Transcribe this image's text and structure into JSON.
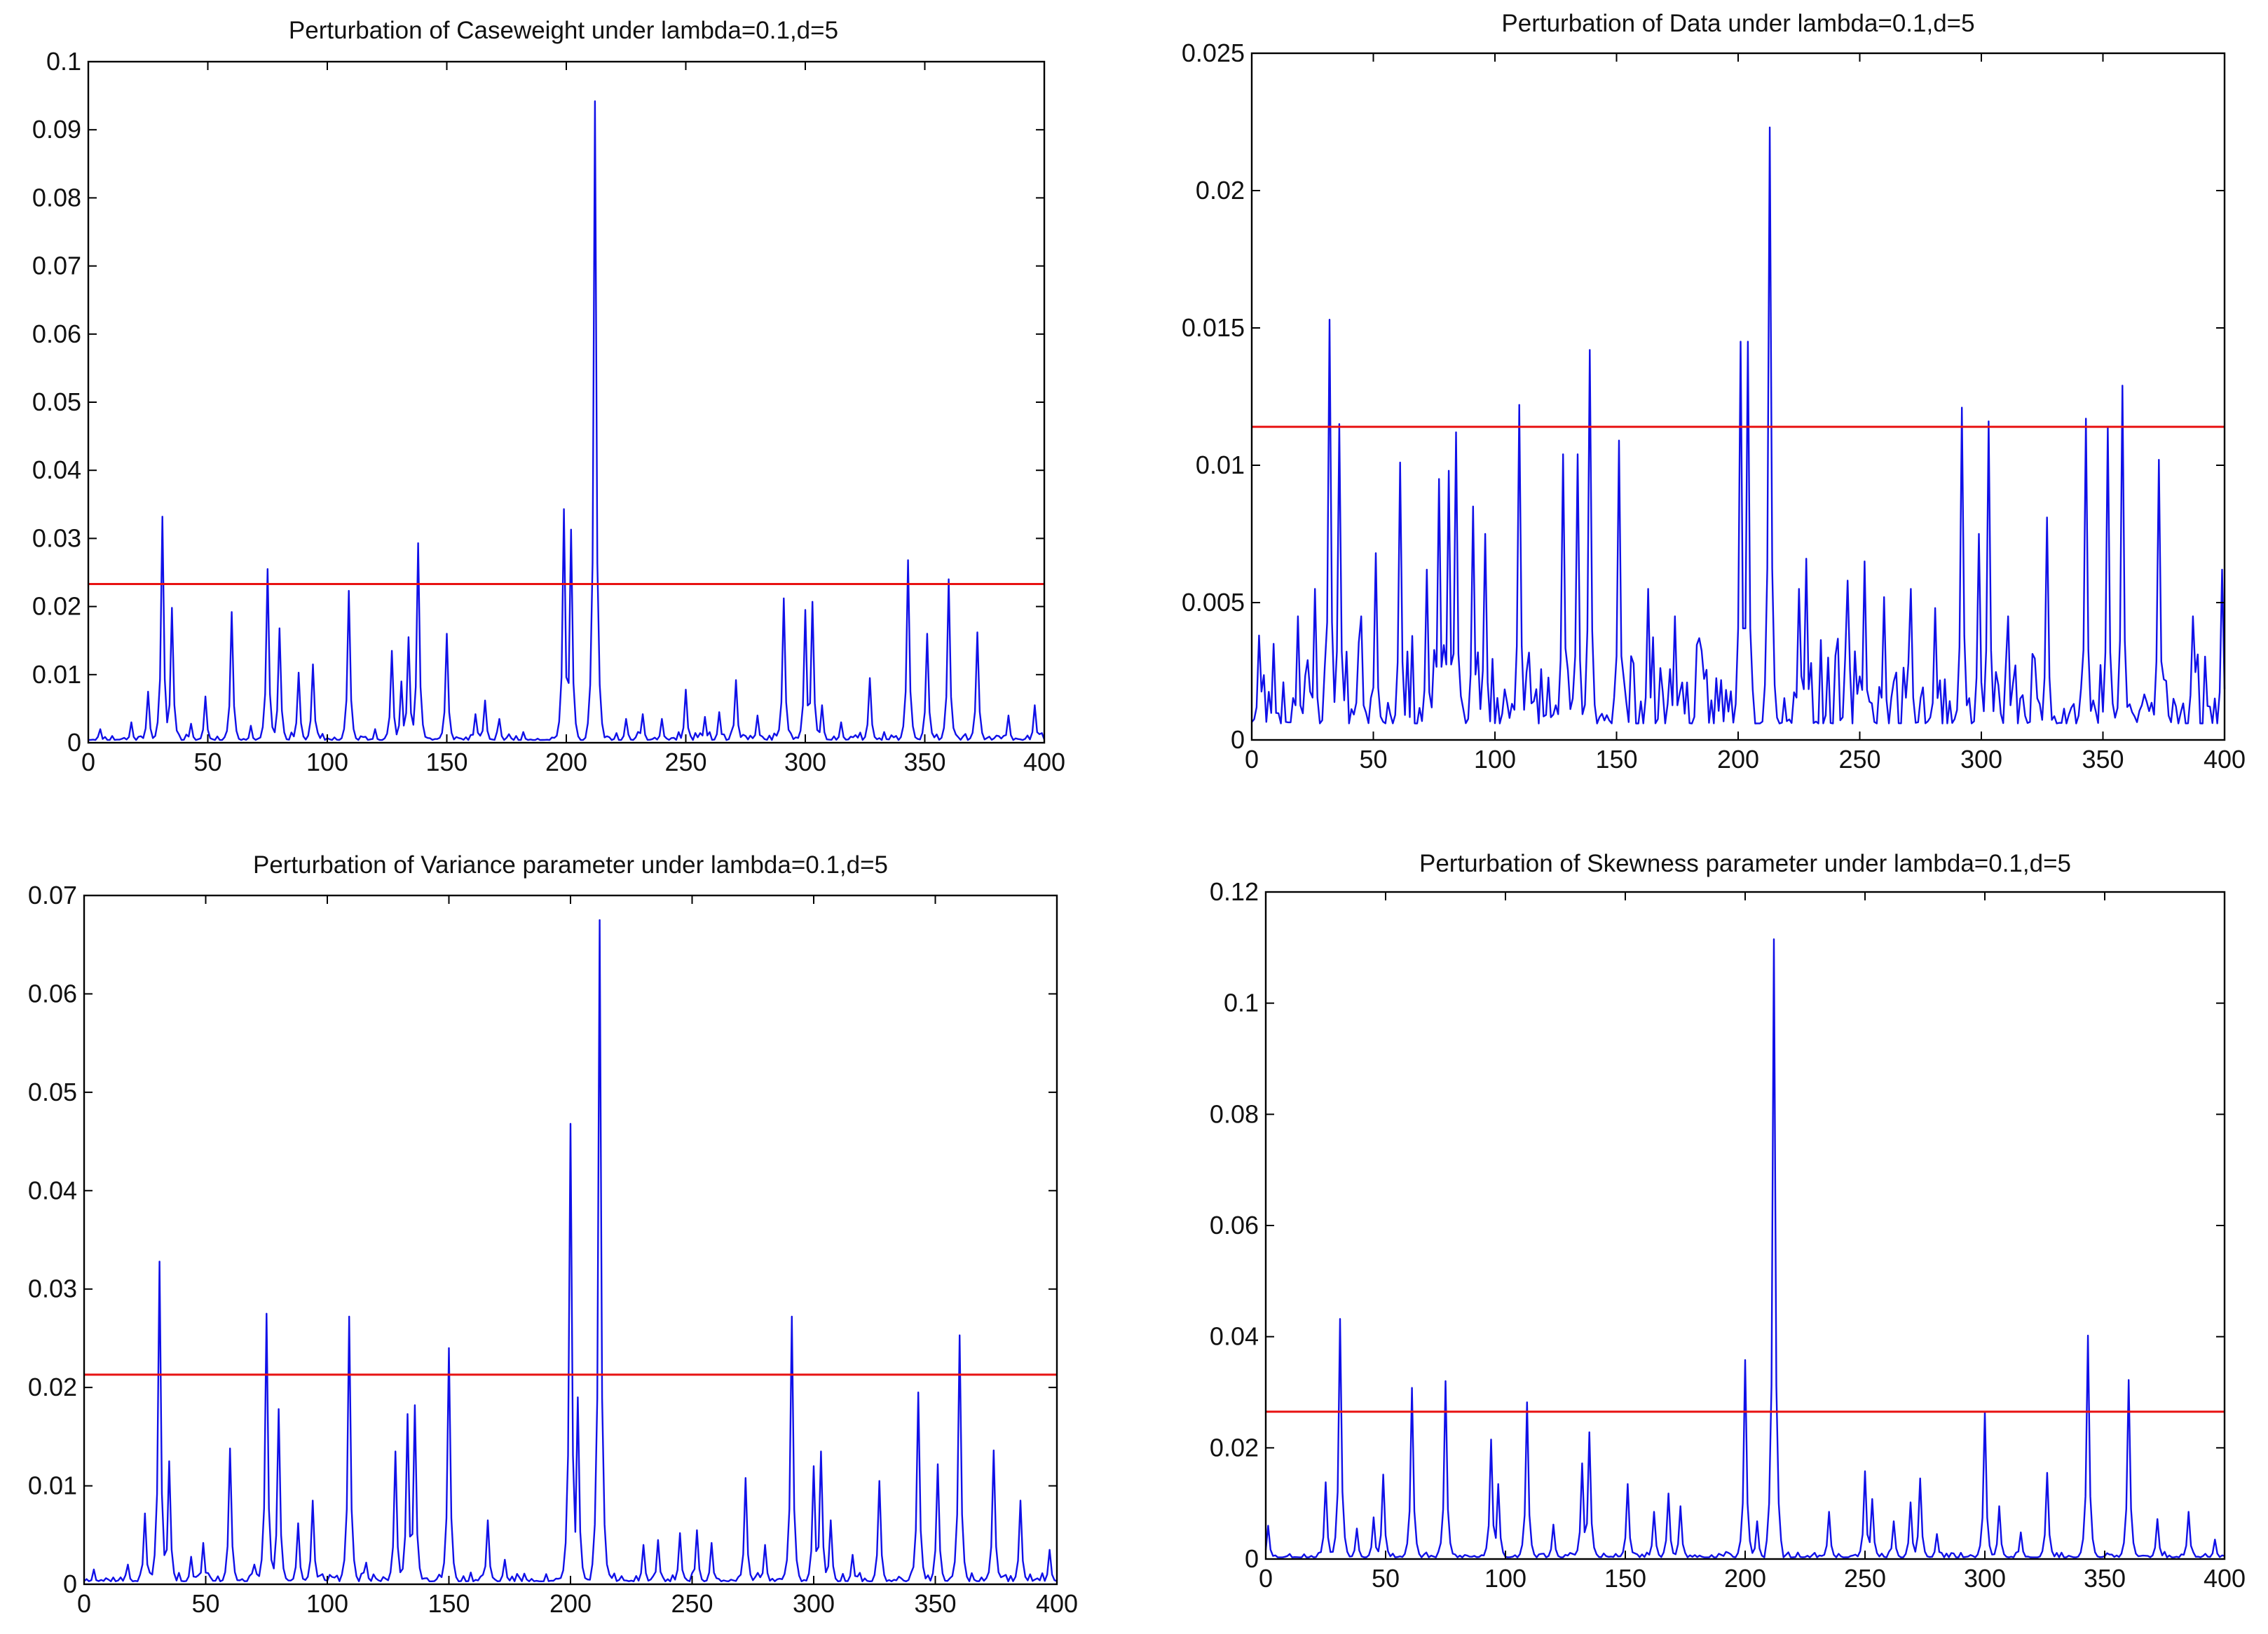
{
  "figure": {
    "layout": "2x2 grid of line plots"
  },
  "colors": {
    "series": "#1010e8",
    "threshold": "#e81212",
    "axes": "#000000",
    "background": "#ffffff"
  },
  "chart_data": [
    {
      "type": "line",
      "title": "Perturbation of Caseweight under lambda=0.1,d=5",
      "xlabel": "",
      "ylabel": "",
      "xlim": [
        0,
        400
      ],
      "ylim": [
        0,
        0.1
      ],
      "x_ticks": [
        0,
        50,
        100,
        150,
        200,
        250,
        300,
        350,
        400
      ],
      "x_tick_labels": [
        "0",
        "50",
        "100",
        "150",
        "200",
        "250",
        "300",
        "350",
        "400"
      ],
      "y_ticks": [
        0,
        0.01,
        0.02,
        0.03,
        0.04,
        0.05,
        0.06,
        0.07,
        0.08,
        0.09,
        0.1
      ],
      "y_tick_labels": [
        "0",
        "0.01",
        "0.02",
        "0.03",
        "0.04",
        "0.05",
        "0.06",
        "0.07",
        "0.08",
        "0.09",
        "0.1"
      ],
      "baseline": 0.0008,
      "noise": 0.0012,
      "noise_seed": 11,
      "grid": false,
      "threshold": 0.0233,
      "peaks": [
        [
          5,
          0.002
        ],
        [
          18,
          0.003
        ],
        [
          25,
          0.0075
        ],
        [
          31,
          0.0332
        ],
        [
          35,
          0.0198
        ],
        [
          43,
          0.0028
        ],
        [
          49,
          0.0068
        ],
        [
          60,
          0.0192
        ],
        [
          68,
          0.0025
        ],
        [
          75,
          0.0255
        ],
        [
          80,
          0.0168
        ],
        [
          88,
          0.0103
        ],
        [
          94,
          0.0115
        ],
        [
          109,
          0.0223
        ],
        [
          120,
          0.002
        ],
        [
          127,
          0.0135
        ],
        [
          131,
          0.009
        ],
        [
          134,
          0.0155
        ],
        [
          138,
          0.0293
        ],
        [
          150,
          0.016
        ],
        [
          162,
          0.0042
        ],
        [
          166,
          0.0062
        ],
        [
          172,
          0.0035
        ],
        [
          199,
          0.0343
        ],
        [
          202,
          0.0313
        ],
        [
          212,
          0.0942
        ],
        [
          225,
          0.0035
        ],
        [
          232,
          0.0042
        ],
        [
          240,
          0.0035
        ],
        [
          250,
          0.0078
        ],
        [
          258,
          0.0038
        ],
        [
          264,
          0.0045
        ],
        [
          271,
          0.0092
        ],
        [
          280,
          0.004
        ],
        [
          291,
          0.0212
        ],
        [
          300,
          0.0195
        ],
        [
          303,
          0.0207
        ],
        [
          307,
          0.0055
        ],
        [
          315,
          0.003
        ],
        [
          327,
          0.0095
        ],
        [
          343,
          0.0268
        ],
        [
          351,
          0.016
        ],
        [
          360,
          0.024
        ],
        [
          372,
          0.0162
        ],
        [
          385,
          0.004
        ],
        [
          396,
          0.0055
        ]
      ]
    },
    {
      "type": "line",
      "title": "Perturbation of Data under lambda=0.1,d=5",
      "xlabel": "",
      "ylabel": "",
      "xlim": [
        0,
        400
      ],
      "ylim": [
        0,
        0.025
      ],
      "x_ticks": [
        0,
        50,
        100,
        150,
        200,
        250,
        300,
        350,
        400
      ],
      "x_tick_labels": [
        "0",
        "50",
        "100",
        "150",
        "200",
        "250",
        "300",
        "350",
        "400"
      ],
      "y_ticks": [
        0,
        0.005,
        0.01,
        0.015,
        0.02,
        0.025
      ],
      "y_tick_labels": [
        "0",
        "0.005",
        "0.01",
        "0.015",
        "0.02",
        "0.025"
      ],
      "baseline": 0.0012,
      "noise": 0.0032,
      "noise_seed": 23,
      "grid": false,
      "threshold": 0.0114,
      "peaks": [
        [
          3,
          0.0038
        ],
        [
          9,
          0.0035
        ],
        [
          19,
          0.0045
        ],
        [
          26,
          0.0055
        ],
        [
          32,
          0.0153
        ],
        [
          36,
          0.0115
        ],
        [
          45,
          0.0045
        ],
        [
          51,
          0.0068
        ],
        [
          61,
          0.0101
        ],
        [
          72,
          0.0062
        ],
        [
          77,
          0.0095
        ],
        [
          81,
          0.0098
        ],
        [
          84,
          0.0112
        ],
        [
          91,
          0.0085
        ],
        [
          96,
          0.0075
        ],
        [
          110,
          0.0122
        ],
        [
          128,
          0.0104
        ],
        [
          134,
          0.0104
        ],
        [
          139,
          0.0142
        ],
        [
          151,
          0.0109
        ],
        [
          163,
          0.0055
        ],
        [
          174,
          0.0045
        ],
        [
          201,
          0.0145
        ],
        [
          204,
          0.0145
        ],
        [
          213,
          0.0223
        ],
        [
          225,
          0.0055
        ],
        [
          228,
          0.0066
        ],
        [
          245,
          0.0058
        ],
        [
          252,
          0.0065
        ],
        [
          260,
          0.0052
        ],
        [
          271,
          0.0055
        ],
        [
          281,
          0.0048
        ],
        [
          292,
          0.0121
        ],
        [
          299,
          0.0075
        ],
        [
          303,
          0.0116
        ],
        [
          311,
          0.0045
        ],
        [
          327,
          0.0081
        ],
        [
          343,
          0.0117
        ],
        [
          352,
          0.0114
        ],
        [
          358,
          0.0129
        ],
        [
          373,
          0.0102
        ],
        [
          387,
          0.0045
        ],
        [
          399,
          0.0062
        ]
      ]
    },
    {
      "type": "line",
      "title": "Perturbation of Variance parameter under lambda=0.1,d=5",
      "xlabel": "",
      "ylabel": "",
      "xlim": [
        0,
        400
      ],
      "ylim": [
        0,
        0.07
      ],
      "x_ticks": [
        0,
        50,
        100,
        150,
        200,
        250,
        300,
        350,
        400
      ],
      "x_tick_labels": [
        "0",
        "50",
        "100",
        "150",
        "200",
        "250",
        "300",
        "350",
        "400"
      ],
      "y_ticks": [
        0,
        0.01,
        0.02,
        0.03,
        0.04,
        0.05,
        0.06,
        0.07
      ],
      "y_tick_labels": [
        "0",
        "0.01",
        "0.02",
        "0.03",
        "0.04",
        "0.05",
        "0.06",
        "0.07"
      ],
      "baseline": 0.0006,
      "noise": 0.0009,
      "noise_seed": 37,
      "grid": false,
      "threshold": 0.0213,
      "peaks": [
        [
          4,
          0.0015
        ],
        [
          18,
          0.002
        ],
        [
          25,
          0.0072
        ],
        [
          31,
          0.0328
        ],
        [
          35,
          0.0125
        ],
        [
          44,
          0.0028
        ],
        [
          49,
          0.0042
        ],
        [
          60,
          0.0138
        ],
        [
          70,
          0.002
        ],
        [
          75,
          0.0275
        ],
        [
          80,
          0.0178
        ],
        [
          88,
          0.0062
        ],
        [
          94,
          0.0085
        ],
        [
          109,
          0.0272
        ],
        [
          116,
          0.0022
        ],
        [
          128,
          0.0135
        ],
        [
          133,
          0.0173
        ],
        [
          136,
          0.0182
        ],
        [
          150,
          0.024
        ],
        [
          166,
          0.0065
        ],
        [
          173,
          0.0025
        ],
        [
          200,
          0.0468
        ],
        [
          203,
          0.019
        ],
        [
          212,
          0.0675
        ],
        [
          230,
          0.004
        ],
        [
          236,
          0.0045
        ],
        [
          245,
          0.0052
        ],
        [
          252,
          0.0055
        ],
        [
          258,
          0.0042
        ],
        [
          272,
          0.0108
        ],
        [
          280,
          0.004
        ],
        [
          291,
          0.0272
        ],
        [
          300,
          0.012
        ],
        [
          303,
          0.0135
        ],
        [
          307,
          0.0065
        ],
        [
          316,
          0.003
        ],
        [
          327,
          0.0105
        ],
        [
          343,
          0.0195
        ],
        [
          351,
          0.0122
        ],
        [
          360,
          0.0253
        ],
        [
          374,
          0.0136
        ],
        [
          385,
          0.0085
        ],
        [
          397,
          0.0035
        ]
      ]
    },
    {
      "type": "line",
      "title": "Perturbation of Skewness parameter under lambda=0.1,d=5",
      "xlabel": "",
      "ylabel": "",
      "xlim": [
        0,
        400
      ],
      "ylim": [
        0,
        0.12
      ],
      "x_ticks": [
        0,
        50,
        100,
        150,
        200,
        250,
        300,
        350,
        400
      ],
      "x_tick_labels": [
        "0",
        "50",
        "100",
        "150",
        "200",
        "250",
        "300",
        "350",
        "400"
      ],
      "y_ticks": [
        0,
        0.02,
        0.04,
        0.06,
        0.08,
        0.1,
        0.12
      ],
      "y_tick_labels": [
        "0",
        "0.02",
        "0.04",
        "0.06",
        "0.08",
        "0.1",
        "0.12"
      ],
      "baseline": 0.0006,
      "noise": 0.001,
      "noise_seed": 53,
      "grid": false,
      "threshold": 0.0265,
      "peaks": [
        [
          1,
          0.006
        ],
        [
          25,
          0.0138
        ],
        [
          31,
          0.0432
        ],
        [
          38,
          0.0055
        ],
        [
          45,
          0.0075
        ],
        [
          49,
          0.0152
        ],
        [
          61,
          0.0308
        ],
        [
          75,
          0.032
        ],
        [
          94,
          0.0215
        ],
        [
          97,
          0.0135
        ],
        [
          109,
          0.0282
        ],
        [
          120,
          0.0062
        ],
        [
          132,
          0.0172
        ],
        [
          135,
          0.0228
        ],
        [
          151,
          0.0135
        ],
        [
          162,
          0.0085
        ],
        [
          168,
          0.0118
        ],
        [
          173,
          0.0095
        ],
        [
          200,
          0.0358
        ],
        [
          205,
          0.0068
        ],
        [
          212,
          0.1115
        ],
        [
          235,
          0.0085
        ],
        [
          250,
          0.0158
        ],
        [
          253,
          0.0108
        ],
        [
          262,
          0.0068
        ],
        [
          269,
          0.0102
        ],
        [
          273,
          0.0145
        ],
        [
          280,
          0.0045
        ],
        [
          300,
          0.0265
        ],
        [
          306,
          0.0095
        ],
        [
          315,
          0.0048
        ],
        [
          326,
          0.0155
        ],
        [
          343,
          0.0402
        ],
        [
          360,
          0.0322
        ],
        [
          372,
          0.0072
        ],
        [
          385,
          0.0085
        ],
        [
          396,
          0.0035
        ]
      ]
    }
  ]
}
